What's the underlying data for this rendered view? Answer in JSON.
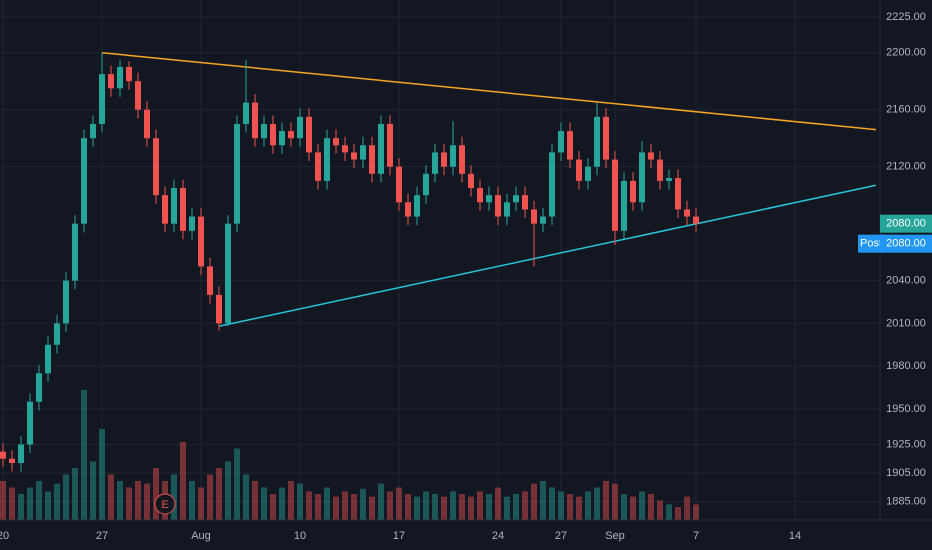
{
  "chart_data": {
    "type": "candlestick",
    "categories": [
      "20",
      null,
      null,
      null,
      null,
      null,
      null,
      null,
      null,
      null,
      null,
      "27",
      null,
      null,
      null,
      null,
      null,
      null,
      null,
      null,
      null,
      null,
      "Aug",
      null,
      null,
      null,
      null,
      null,
      null,
      null,
      null,
      null,
      null,
      "10",
      null,
      null,
      null,
      null,
      null,
      null,
      null,
      null,
      null,
      null,
      "17",
      null,
      null,
      null,
      null,
      null,
      null,
      null,
      null,
      null,
      null,
      "24",
      null,
      null,
      null,
      null,
      null,
      null,
      "27",
      null,
      null,
      null,
      null,
      null,
      "Sep",
      null,
      null,
      null,
      null,
      null,
      null,
      null,
      null,
      "7",
      null,
      null,
      null,
      null,
      null,
      null,
      null,
      null,
      null,
      null,
      "14",
      null,
      null,
      null,
      null,
      null,
      null,
      null,
      null,
      null,
      null,
      null
    ],
    "open": [
      1920,
      1915,
      1912,
      1925,
      1955,
      1975,
      1995,
      2010,
      2040,
      2080,
      2140,
      2150,
      2185,
      2175,
      2190,
      2180,
      2160,
      2140,
      2100,
      2080,
      2105,
      2075,
      2085,
      2050,
      2030,
      2010,
      2080,
      2150,
      2165,
      2140,
      2150,
      2135,
      2145,
      2140,
      2155,
      2130,
      2110,
      2140,
      2135,
      2130,
      2125,
      2135,
      2115,
      2150,
      2120,
      2095,
      2085,
      2100,
      2115,
      2130,
      2120,
      2135,
      2115,
      2105,
      2095,
      2100,
      2085,
      2095,
      2100,
      2090,
      2080,
      2085,
      2130,
      2145,
      2125,
      2110,
      2120,
      2155,
      2125,
      2075,
      2110,
      2095,
      2130,
      2125,
      2110,
      2112,
      2090,
      2085,
      null,
      null,
      null,
      null,
      null,
      null,
      null,
      null,
      null,
      null,
      null,
      null,
      null,
      null,
      null,
      null,
      null,
      null,
      null,
      null,
      null,
      null
    ],
    "high": [
      1926,
      1921,
      1931,
      1961,
      1981,
      2001,
      2016,
      2046,
      2086,
      2146,
      2156,
      2200,
      2191,
      2195,
      2194,
      2186,
      2166,
      2146,
      2106,
      2111,
      2111,
      2091,
      2091,
      2056,
      2036,
      2086,
      2156,
      2195,
      2171,
      2156,
      2156,
      2151,
      2151,
      2161,
      2161,
      2136,
      2146,
      2146,
      2141,
      2136,
      2141,
      2141,
      2156,
      2156,
      2126,
      2101,
      2106,
      2121,
      2136,
      2136,
      2152,
      2141,
      2121,
      2111,
      2106,
      2106,
      2101,
      2106,
      2106,
      2096,
      2091,
      2136,
      2151,
      2151,
      2131,
      2126,
      2165,
      2161,
      2131,
      2116,
      2116,
      2138,
      2136,
      2131,
      2118,
      2118,
      2096,
      2091,
      null,
      null,
      null,
      null,
      null,
      null,
      null,
      null,
      null,
      null,
      null,
      null,
      null,
      null,
      null,
      null,
      null,
      null,
      null,
      null,
      null,
      null
    ],
    "low": [
      1909,
      1906,
      1906,
      1919,
      1949,
      1969,
      1989,
      2004,
      2034,
      2074,
      2134,
      2144,
      2169,
      2169,
      2174,
      2154,
      2134,
      2094,
      2074,
      2074,
      2069,
      2069,
      2044,
      2024,
      2005,
      2008,
      2074,
      2144,
      2134,
      2134,
      2129,
      2129,
      2134,
      2134,
      2124,
      2104,
      2104,
      2129,
      2124,
      2119,
      2119,
      2109,
      2109,
      2114,
      2089,
      2079,
      2079,
      2094,
      2109,
      2114,
      2114,
      2109,
      2099,
      2089,
      2089,
      2079,
      2079,
      2089,
      2084,
      2050,
      2074,
      2079,
      2124,
      2119,
      2104,
      2104,
      2114,
      2119,
      2065,
      2069,
      2089,
      2089,
      2119,
      2104,
      2104,
      2084,
      2079,
      2074,
      null,
      null,
      null,
      null,
      null,
      null,
      null,
      null,
      null,
      null,
      null,
      null,
      null,
      null,
      null,
      null,
      null,
      null,
      null,
      null,
      null,
      null
    ],
    "close": [
      1915,
      1912,
      1925,
      1955,
      1975,
      1995,
      2010,
      2040,
      2080,
      2140,
      2150,
      2185,
      2175,
      2190,
      2180,
      2160,
      2140,
      2100,
      2080,
      2105,
      2075,
      2085,
      2050,
      2030,
      2010,
      2080,
      2150,
      2165,
      2140,
      2150,
      2135,
      2145,
      2140,
      2155,
      2130,
      2110,
      2140,
      2135,
      2130,
      2125,
      2135,
      2115,
      2150,
      2120,
      2095,
      2085,
      2100,
      2115,
      2130,
      2120,
      2135,
      2115,
      2105,
      2095,
      2100,
      2085,
      2095,
      2100,
      2090,
      2080,
      2085,
      2130,
      2145,
      2125,
      2110,
      2120,
      2155,
      2125,
      2075,
      2110,
      2095,
      2130,
      2125,
      2110,
      2112,
      2090,
      2085,
      2080,
      null,
      null,
      null,
      null,
      null,
      null,
      null,
      null,
      null,
      null,
      null,
      null,
      null,
      null,
      null,
      null,
      null,
      null,
      null,
      null,
      null,
      null
    ],
    "volume": [
      30,
      25,
      20,
      25,
      30,
      22,
      28,
      35,
      40,
      100,
      45,
      70,
      35,
      30,
      25,
      30,
      28,
      40,
      30,
      35,
      60,
      30,
      25,
      35,
      40,
      45,
      55,
      35,
      30,
      25,
      20,
      25,
      30,
      28,
      22,
      20,
      25,
      18,
      22,
      20,
      24,
      18,
      28,
      22,
      25,
      20,
      18,
      22,
      20,
      18,
      22,
      20,
      18,
      22,
      20,
      25,
      18,
      20,
      22,
      28,
      30,
      25,
      22,
      20,
      18,
      22,
      25,
      30,
      28,
      20,
      18,
      22,
      20,
      15,
      12,
      10,
      18,
      12,
      null,
      null,
      null,
      null,
      null,
      null,
      null,
      null,
      null,
      null,
      null,
      null,
      null,
      null,
      null,
      null,
      null,
      null,
      null,
      null,
      null,
      null
    ],
    "up_color": "#26a69a",
    "down_color": "#ef5350",
    "ylim": [
      1872,
      2237
    ],
    "vlim": [
      0,
      100
    ],
    "yticks": [
      {
        "value": 2225,
        "label": "2225.00"
      },
      {
        "value": 2200,
        "label": "2200.00"
      },
      {
        "value": 2160,
        "label": "2160.00"
      },
      {
        "value": 2120,
        "label": "2120.00"
      },
      {
        "value": 2040,
        "label": "2040.00"
      },
      {
        "value": 2010,
        "label": "2010.00"
      },
      {
        "value": 1980,
        "label": "1980.00"
      },
      {
        "value": 1950,
        "label": "1950.00"
      },
      {
        "value": 1925,
        "label": "1925.00"
      },
      {
        "value": 1905,
        "label": "1905.00"
      },
      {
        "value": 1885,
        "label": "1885.00"
      }
    ],
    "grid": true,
    "trendlines": [
      {
        "color": "#f5a623",
        "x": [
          11,
          97
        ],
        "y": [
          2200,
          2146
        ]
      },
      {
        "color": "#26c6da",
        "x": [
          24,
          97
        ],
        "y": [
          2008,
          2107
        ]
      }
    ],
    "price_labels": [
      {
        "value": 2080,
        "label": "2080.00",
        "color": "#26a69a"
      },
      {
        "name": "Post",
        "value": 2080,
        "label": "2080.00",
        "color": "#2196f3"
      }
    ],
    "events": [
      {
        "index": 18,
        "label": "E"
      }
    ]
  }
}
